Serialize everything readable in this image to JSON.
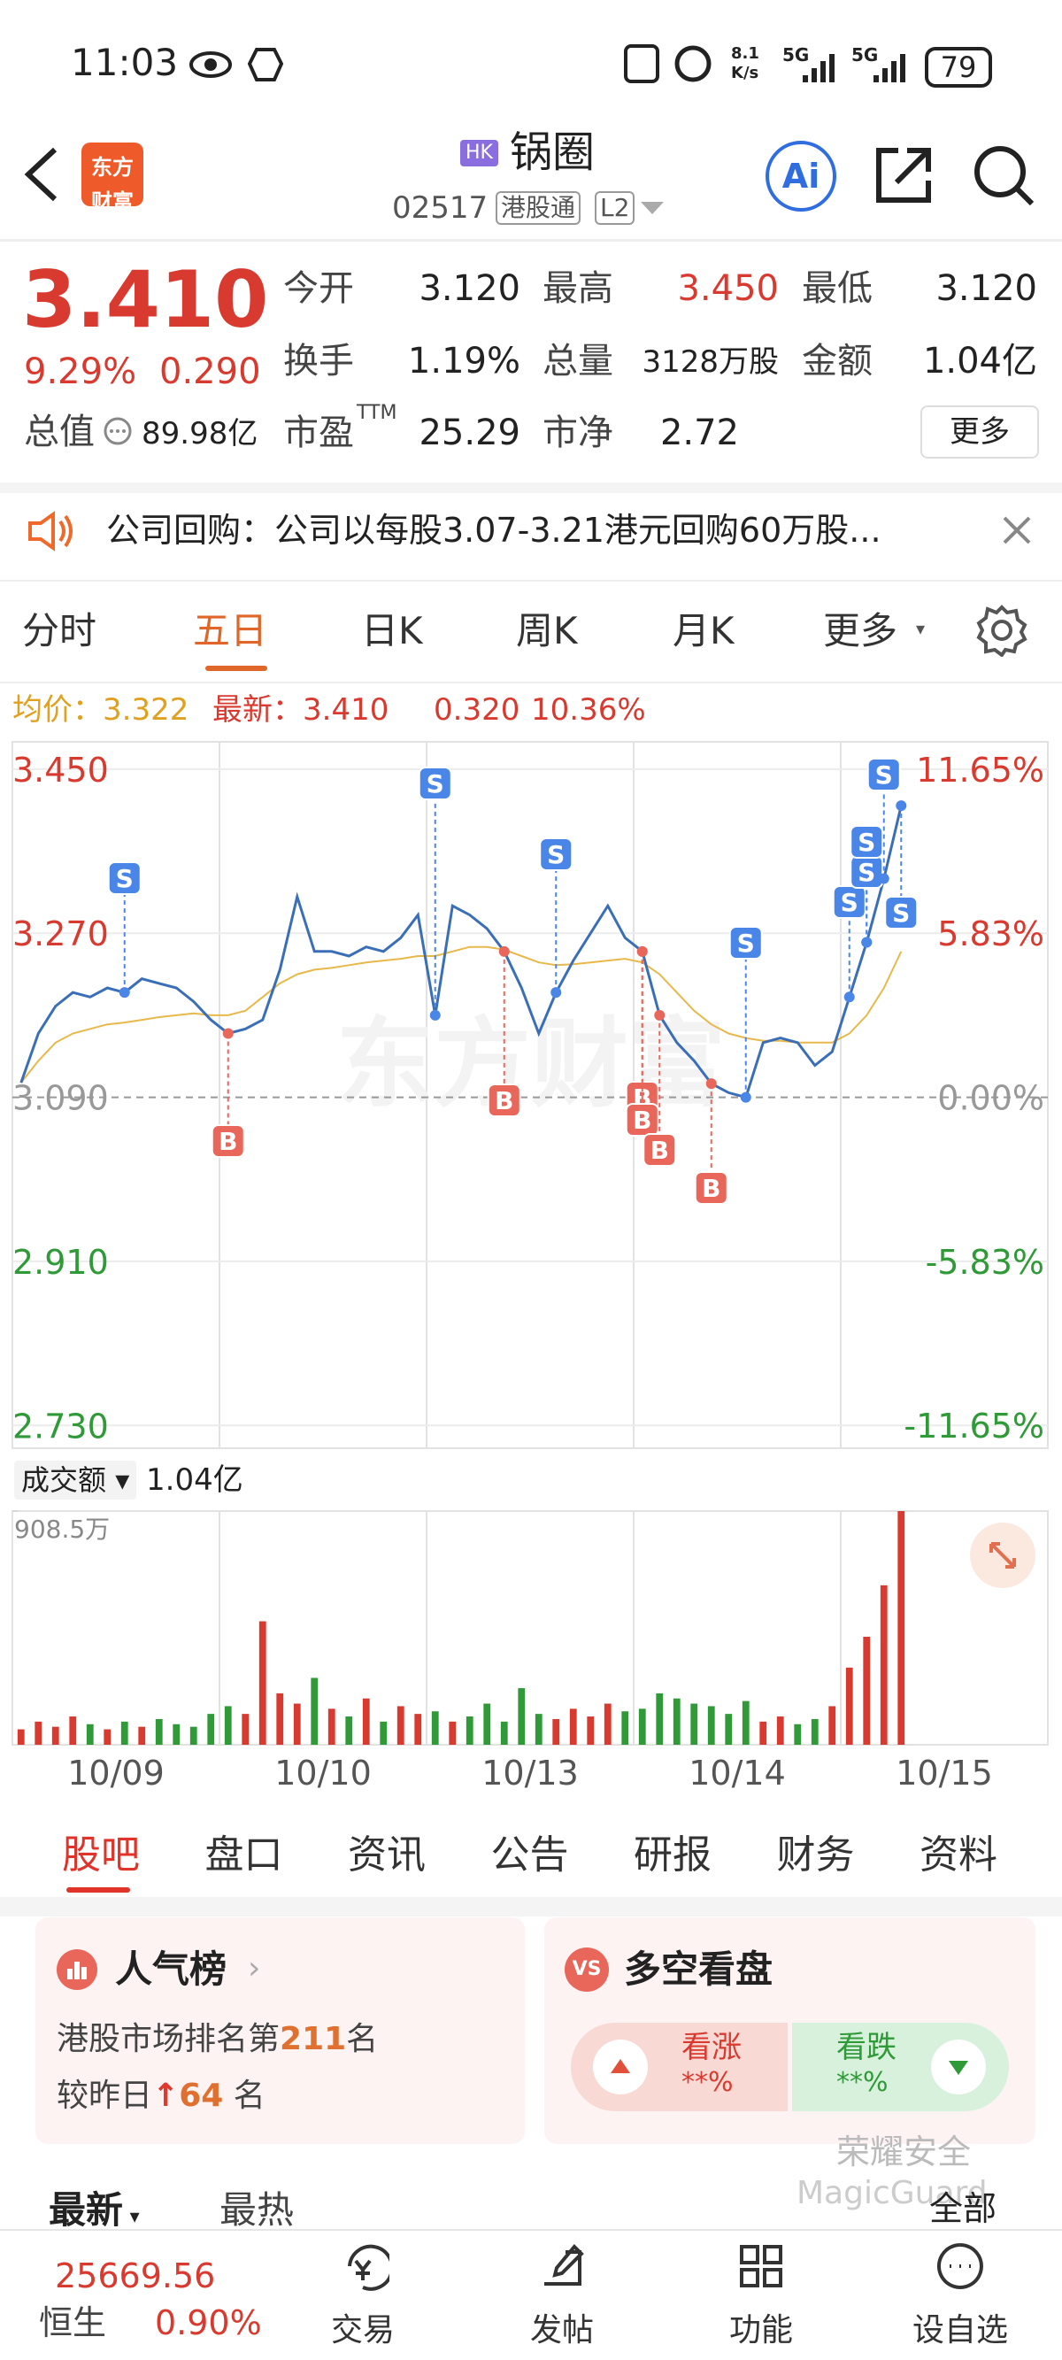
{
  "status_bar": {
    "time": "11:03",
    "net_speed": [
      "8.1",
      "K/s"
    ],
    "signal": [
      "5G",
      "5G"
    ],
    "battery": "79"
  },
  "header": {
    "logo": [
      "东方",
      "财富"
    ],
    "market": "HK",
    "name": "锅圈",
    "code": "02517",
    "tag": "港股通",
    "level": "L2",
    "ai": "Ai"
  },
  "quote": {
    "price": "3.410",
    "change_pct": "9.29%",
    "change": "0.290",
    "rows": [
      [
        {
          "label": "今开",
          "value": "3.120"
        },
        {
          "label": "最高",
          "value": "3.450"
        },
        {
          "label": "最低",
          "value": "3.120"
        }
      ],
      [
        {
          "label": "换手",
          "value": "1.19%"
        },
        {
          "label": "总量",
          "value": "3128万股"
        },
        {
          "label": "金额",
          "value": "1.04亿"
        }
      ],
      [
        {
          "label": "市盈",
          "sup": "TTM",
          "value": "25.29"
        },
        {
          "label": "市净",
          "value": "2.72"
        }
      ]
    ],
    "cap_label": "总值",
    "cap_value": "89.98亿",
    "more": "更多"
  },
  "notice": "公司回购：公司以每股3.07-3.21港元回购60万股...",
  "chart_tabs": [
    "分时",
    "五日",
    "日K",
    "周K",
    "月K",
    "更多"
  ],
  "info_line": {
    "avg_label": "均价：",
    "avg": "3.322",
    "latest_label": "最新：",
    "latest": "3.410",
    "change": "0.320",
    "pct": "10.36%"
  },
  "price_chart": {
    "type": "line",
    "watermark": "东方财富",
    "ylim": [
      2.705,
      3.48
    ],
    "yticks": [
      {
        "value": 3.45,
        "label": "3.450"
      },
      {
        "value": 3.27,
        "label": "3.270"
      },
      {
        "value": 3.09,
        "label": "3.090"
      },
      {
        "value": 2.91,
        "label": "2.910"
      },
      {
        "value": 2.73,
        "label": "2.730"
      }
    ],
    "y2lim": [
      -12.46,
      12.62
    ],
    "y2ticks": [
      {
        "value": 11.65,
        "label": "11.65%"
      },
      {
        "value": 5.83,
        "label": "5.83%"
      },
      {
        "value": 0,
        "label": "0.00%"
      },
      {
        "value": -5.83,
        "label": "-5.83%"
      },
      {
        "value": -11.65,
        "label": "-11.65%"
      }
    ],
    "series": [
      {
        "name": "价格",
        "color": "#3a6fb8",
        "values": [
          3.106,
          3.16,
          3.19,
          3.205,
          3.2,
          3.21,
          3.205,
          3.22,
          3.215,
          3.21,
          3.195,
          3.175,
          3.16,
          3.165,
          3.175,
          3.23,
          3.31,
          3.25,
          3.25,
          3.245,
          3.255,
          3.25,
          3.265,
          3.29,
          3.18,
          3.3,
          3.29,
          3.275,
          3.25,
          3.21,
          3.16,
          3.205,
          3.24,
          3.27,
          3.3,
          3.265,
          3.25,
          3.18,
          3.15,
          3.13,
          3.105,
          3.095,
          3.09,
          3.15,
          3.155,
          3.15,
          3.125,
          3.14,
          3.2,
          3.26,
          3.33,
          3.41
        ]
      },
      {
        "name": "均价",
        "color": "#e8b84a",
        "values": [
          3.106,
          3.13,
          3.15,
          3.16,
          3.165,
          3.17,
          3.172,
          3.175,
          3.178,
          3.18,
          3.182,
          3.18,
          3.18,
          3.185,
          3.2,
          3.215,
          3.225,
          3.23,
          3.232,
          3.235,
          3.238,
          3.24,
          3.242,
          3.245,
          3.245,
          3.25,
          3.255,
          3.255,
          3.252,
          3.245,
          3.238,
          3.235,
          3.236,
          3.238,
          3.24,
          3.242,
          3.238,
          3.225,
          3.205,
          3.185,
          3.17,
          3.16,
          3.155,
          3.152,
          3.152,
          3.15,
          3.15,
          3.15,
          3.16,
          3.18,
          3.21,
          3.25
        ]
      }
    ],
    "trade_markers": [
      "S",
      "S",
      "S",
      "S",
      "S",
      "S",
      "S",
      "S",
      "S",
      "B",
      "B",
      "B",
      "B",
      "B",
      "B"
    ]
  },
  "volume": {
    "label": "成交额",
    "total": "1.04亿",
    "ylim": [
      0,
      908.5
    ],
    "yticks": [
      {
        "value": 908.5,
        "label": "908.5万"
      }
    ],
    "values": [
      60,
      90,
      70,
      110,
      80,
      60,
      90,
      70,
      100,
      80,
      70,
      120,
      150,
      120,
      480,
      200,
      160,
      260,
      140,
      110,
      180,
      90,
      150,
      120,
      130,
      90,
      110,
      160,
      90,
      220,
      120,
      100,
      140,
      110,
      160,
      130,
      140,
      200,
      180,
      160,
      150,
      120,
      170,
      90,
      110,
      80,
      100,
      150,
      300,
      420,
      620,
      908.5
    ]
  },
  "dates": [
    "10/09",
    "10/10",
    "10/13",
    "10/14",
    "10/15"
  ],
  "section_tabs": [
    "股吧",
    "盘口",
    "资讯",
    "公告",
    "研报",
    "财务",
    "资料"
  ],
  "popularity": {
    "title": "人气榜",
    "rank": [
      "港股市场排名第",
      "211",
      "名"
    ],
    "change": [
      "较昨日",
      "64",
      "名"
    ]
  },
  "bull_bear": {
    "badge": "VS",
    "title": "多空看盘",
    "up": "看涨",
    "up_pct": "**%",
    "down": "看跌",
    "down_pct": "**%"
  },
  "watermark": [
    "荣耀安全",
    "MagicGuard"
  ],
  "feed_tabs": [
    "最新",
    "最热"
  ],
  "filter": "全部",
  "bottom_nav": {
    "index_value": "25669.56",
    "index_name": "恒生",
    "index_pct": "0.90%",
    "items": [
      "交易",
      "发帖",
      "功能",
      "设自选"
    ]
  }
}
